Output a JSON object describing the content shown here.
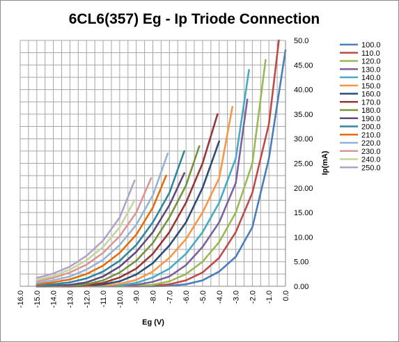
{
  "chart_data": {
    "type": "line",
    "title": "6CL6(357) Eg - Ip Triode Connection",
    "xlabel": "Eg (V)",
    "ylabel": "Ip(mA)",
    "xlim": [
      -16,
      0
    ],
    "ylim": [
      0,
      50
    ],
    "x_ticks": [
      "-16.0",
      "-15.0",
      "-14.0",
      "-13.0",
      "-12.0",
      "-11.0",
      "-10.0",
      "-9.0",
      "-8.0",
      "-7.0",
      "-6.0",
      "-5.0",
      "-4.0",
      "-3.0",
      "-2.0",
      "-1.0",
      "0.0"
    ],
    "y_ticks": [
      "0.00",
      "5.00",
      "10.00",
      "15.00",
      "20.00",
      "25.00",
      "30.00",
      "35.00",
      "40.00",
      "45.00",
      "50.0"
    ],
    "grid": true,
    "y_axis_side": "right",
    "legend_position": "right",
    "series": [
      {
        "name": "100.0",
        "color": "#4a7ebb",
        "x": [
          -15,
          -14,
          -13,
          -12,
          -11,
          -10,
          -9,
          -8,
          -7,
          -6,
          -5,
          -4,
          -3,
          -2,
          -1,
          0
        ],
        "y": [
          0,
          0,
          0,
          0,
          0,
          0,
          0,
          0,
          0.1,
          0.4,
          1.2,
          3,
          6,
          12,
          26,
          48
        ]
      },
      {
        "name": "110.0",
        "color": "#be4b48",
        "x": [
          -15,
          -14,
          -13,
          -12,
          -11,
          -10,
          -9,
          -8,
          -7,
          -6,
          -5,
          -4,
          -3,
          -2,
          -1,
          -0.4
        ],
        "y": [
          0,
          0,
          0,
          0,
          0,
          0,
          0,
          0.1,
          0.4,
          1.2,
          2.8,
          5.8,
          11,
          19,
          33,
          50
        ]
      },
      {
        "name": "120.0",
        "color": "#98b954",
        "x": [
          -15,
          -14,
          -13,
          -12,
          -11,
          -10,
          -9,
          -8,
          -7,
          -6,
          -5,
          -4,
          -3,
          -2,
          -1.2
        ],
        "y": [
          0,
          0,
          0,
          0,
          0,
          0,
          0.1,
          0.3,
          1,
          2.5,
          5,
          9,
          15,
          25,
          46
        ]
      },
      {
        "name": "130.0",
        "color": "#7d60a0",
        "x": [
          -15,
          -14,
          -13,
          -12,
          -11,
          -10,
          -9,
          -8,
          -7,
          -6,
          -5,
          -4,
          -3,
          -2.3
        ],
        "y": [
          0,
          0,
          0,
          0,
          0,
          0.1,
          0.3,
          0.9,
          2,
          4.3,
          8,
          13,
          21,
          38
        ]
      },
      {
        "name": "140.0",
        "color": "#46aac5",
        "x": [
          -15,
          -14,
          -13,
          -12,
          -11,
          -10,
          -9,
          -8,
          -7,
          -6,
          -5,
          -4,
          -3,
          -2.2
        ],
        "y": [
          0,
          0,
          0,
          0,
          0,
          0.2,
          0.7,
          1.8,
          3.6,
          6.6,
          11,
          17,
          26,
          44
        ]
      },
      {
        "name": "150.0",
        "color": "#f79646",
        "x": [
          -15,
          -14,
          -13,
          -12,
          -11,
          -10,
          -9,
          -8,
          -7,
          -6,
          -5,
          -4,
          -3.2
        ],
        "y": [
          0,
          0,
          0,
          0,
          0.1,
          0.5,
          1.3,
          3,
          5.8,
          9.6,
          15,
          22,
          36.5
        ]
      },
      {
        "name": "160.0",
        "color": "#2c4d75",
        "x": [
          -15,
          -14,
          -13,
          -12,
          -11,
          -10,
          -9,
          -8,
          -7,
          -6,
          -5,
          -4
        ],
        "y": [
          0,
          0,
          0,
          0.1,
          0.4,
          1,
          2.4,
          4.7,
          8.3,
          13,
          20,
          29.5
        ]
      },
      {
        "name": "170.0",
        "color": "#953735",
        "x": [
          -15,
          -14,
          -13,
          -12,
          -11,
          -10,
          -9,
          -8,
          -7,
          -6,
          -5,
          -4.1
        ],
        "y": [
          0,
          0,
          0,
          0.2,
          0.7,
          1.8,
          3.6,
          6.6,
          11,
          17,
          25,
          35
        ]
      },
      {
        "name": "180.0",
        "color": "#76923c",
        "x": [
          -15,
          -14,
          -13,
          -12,
          -11,
          -10,
          -9,
          -8,
          -7,
          -6,
          -5.2
        ],
        "y": [
          0,
          0,
          0.1,
          0.4,
          1.2,
          2.8,
          5.2,
          8.8,
          14,
          20.5,
          28.5
        ]
      },
      {
        "name": "190.0",
        "color": "#5f497a",
        "x": [
          -15,
          -14,
          -13,
          -12,
          -11,
          -10,
          -9,
          -8,
          -7,
          -6.1
        ],
        "y": [
          0,
          0.1,
          0.3,
          0.8,
          2,
          4,
          7,
          11,
          16.5,
          23
        ]
      },
      {
        "name": "200.0",
        "color": "#31859c",
        "x": [
          -15,
          -14,
          -13,
          -12,
          -11,
          -10,
          -9,
          -8,
          -7,
          -6.1
        ],
        "y": [
          0.2,
          0.4,
          0.8,
          1.6,
          3,
          5.2,
          8.4,
          13,
          19,
          27.5
        ]
      },
      {
        "name": "210.0",
        "color": "#e46c0a",
        "x": [
          -15,
          -14,
          -13,
          -12,
          -11,
          -10,
          -9,
          -8,
          -7.2
        ],
        "y": [
          0.4,
          0.8,
          1.4,
          2.5,
          4.2,
          6.8,
          10.5,
          16,
          22.5
        ]
      },
      {
        "name": "220.0",
        "color": "#95b3d7",
        "x": [
          -15,
          -14,
          -13,
          -12,
          -11,
          -10,
          -9,
          -8,
          -7.1
        ],
        "y": [
          0.7,
          1.2,
          2,
          3.4,
          5.4,
          8.4,
          12.5,
          18.5,
          27
        ]
      },
      {
        "name": "230.0",
        "color": "#d99694",
        "x": [
          -15,
          -14,
          -13,
          -12,
          -11,
          -10,
          -9,
          -8.1
        ],
        "y": [
          1,
          1.7,
          2.8,
          4.4,
          6.8,
          10.2,
          15,
          22
        ]
      },
      {
        "name": "240.0",
        "color": "#c3d69b",
        "x": [
          -15,
          -14,
          -13,
          -12,
          -11,
          -10,
          -9.1
        ],
        "y": [
          1.3,
          2.1,
          3.4,
          5.3,
          8,
          12,
          17.5
        ]
      },
      {
        "name": "250.0",
        "color": "#b2a2c7",
        "x": [
          -15,
          -14,
          -13,
          -12,
          -11,
          -10,
          -9.1
        ],
        "y": [
          1.7,
          2.6,
          4,
          6.2,
          9.3,
          14,
          21.5
        ]
      }
    ]
  }
}
